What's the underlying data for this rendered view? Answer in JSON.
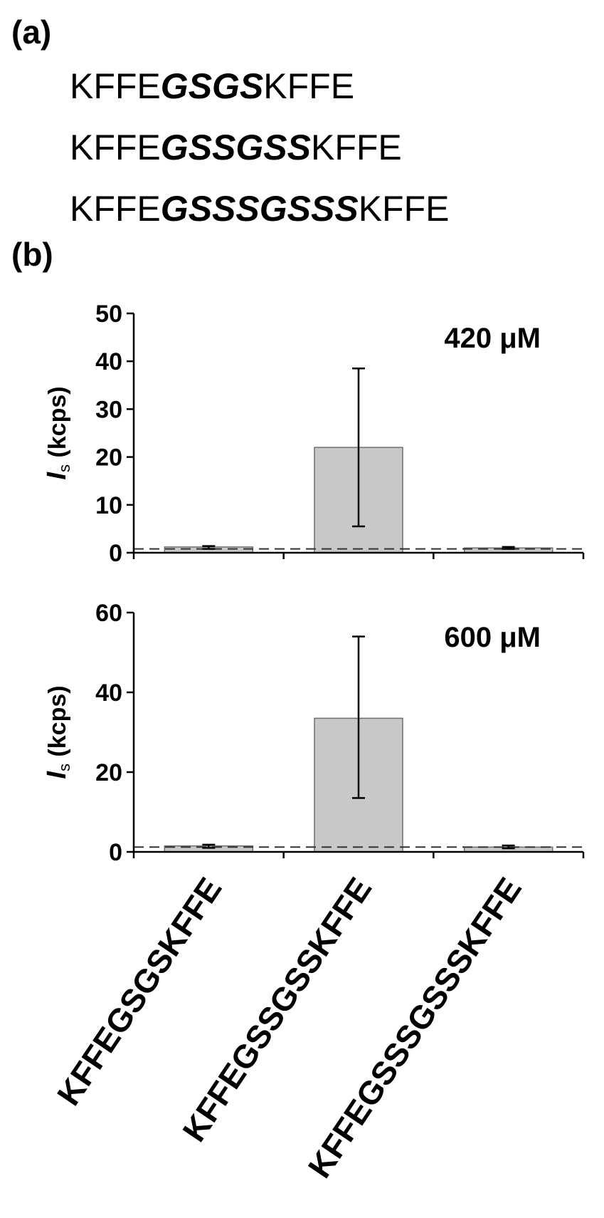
{
  "panel_a": {
    "label": "(a)",
    "sequences": [
      {
        "prefix": "KFFE",
        "linker": "GSGS",
        "suffix": "KFFE"
      },
      {
        "prefix": "KFFE",
        "linker": "GSSGSS",
        "suffix": "KFFE"
      },
      {
        "prefix": "KFFE",
        "linker": "GSSSGSSS",
        "suffix": "KFFE"
      }
    ]
  },
  "panel_b": {
    "label": "(b)"
  },
  "chart_data": [
    {
      "type": "bar",
      "annotation": "420 μM",
      "ylabel_main": "I",
      "ylabel_sub": "s",
      "ylabel_unit": " (kcps)",
      "categories": [
        "KFFEGSGSKFFE",
        "KFFEGSSGSSKFFE",
        "KFFEGSSSGSSSKFFE"
      ],
      "values": [
        1.2,
        22.0,
        1.0
      ],
      "error_low": [
        0.8,
        5.5,
        0.8
      ],
      "error_high": [
        1.4,
        38.5,
        1.2
      ],
      "baseline": 0.8,
      "ylim": [
        0,
        50
      ],
      "yticks": [
        0,
        10,
        20,
        30,
        40,
        50
      ],
      "bar_color": "#c8c8c8",
      "grid": false
    },
    {
      "type": "bar",
      "annotation": "600 μM",
      "ylabel_main": "I",
      "ylabel_sub": "s",
      "ylabel_unit": " (kcps)",
      "categories": [
        "KFFEGSGSKFFE",
        "KFFEGSSGSSKFFE",
        "KFFEGSSSGSSSKFFE"
      ],
      "values": [
        1.5,
        33.5,
        1.2
      ],
      "error_low": [
        1.0,
        13.5,
        0.9
      ],
      "error_high": [
        1.8,
        54.0,
        1.6
      ],
      "baseline": 1.2,
      "ylim": [
        0,
        60
      ],
      "yticks": [
        0,
        20,
        40,
        60
      ],
      "bar_color": "#c8c8c8",
      "grid": false
    }
  ]
}
